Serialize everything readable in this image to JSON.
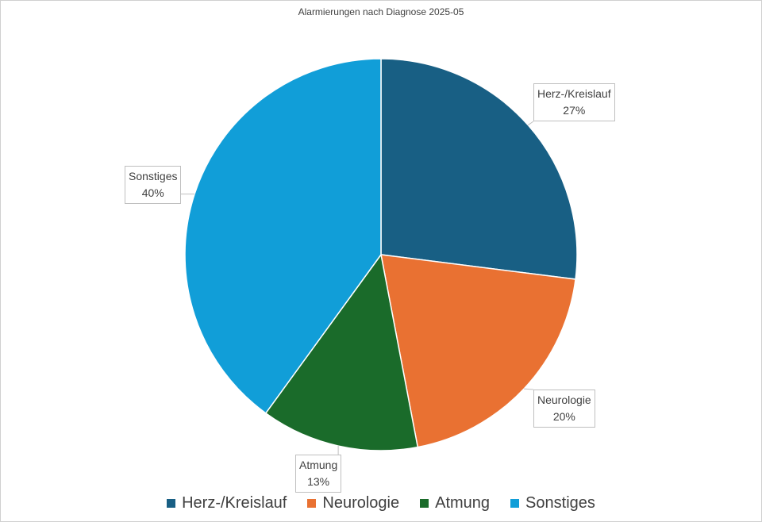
{
  "chart_data": {
    "type": "pie",
    "title": "Alarmierungen nach Diagnose 2025-05",
    "categories": [
      "Herz-/Kreislauf",
      "Neurologie",
      "Atmung",
      "Sonstiges"
    ],
    "values": [
      27,
      20,
      13,
      40
    ],
    "value_labels": [
      "27%",
      "20%",
      "13%",
      "40%"
    ],
    "colors": [
      "#185F84",
      "#E97132",
      "#1A6B2A",
      "#119ED8"
    ],
    "legend_position": "bottom",
    "start_angle_deg": 0,
    "direction": "clockwise"
  }
}
